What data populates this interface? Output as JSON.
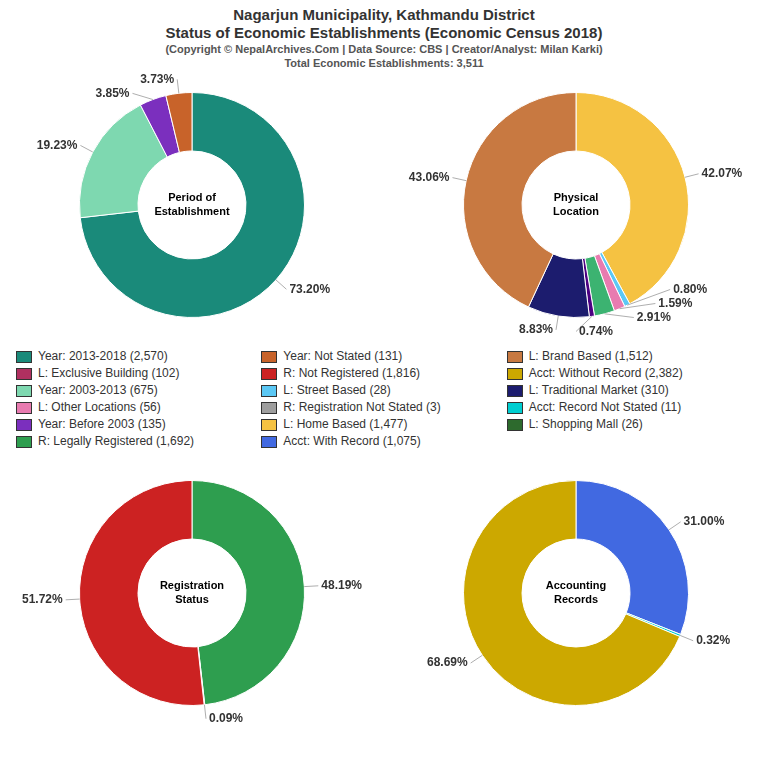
{
  "title": [
    "Nagarjun Municipality, Kathmandu District",
    "Status of Economic Establishments (Economic Census 2018)"
  ],
  "subtitle": [
    "(Copyright © NepalArchives.Com | Data Source: CBS | Creator/Analyst: Milan Karki)",
    "Total Economic Establishments: 3,511"
  ],
  "legend_entries": [
    {
      "name": "Year: 2013-2018 (2,570)",
      "color": "#1a8a7a"
    },
    {
      "name": "Year: Not Stated (131)",
      "color": "#C8632A"
    },
    {
      "name": "L: Brand Based (1,512)",
      "color": "#C87941"
    },
    {
      "name": "L: Exclusive Building (102)",
      "color": "#B03060"
    },
    {
      "name": "R: Not Registered (1,816)",
      "color": "#CC2222"
    },
    {
      "name": "Acct: Without Record (2,382)",
      "color": "#CCA800"
    },
    {
      "name": "Year: 2003-2013 (675)",
      "color": "#7ED8B0"
    },
    {
      "name": "L: Street Based (28)",
      "color": "#5BC8F5"
    },
    {
      "name": "L: Traditional Market (310)",
      "color": "#1C1C6E"
    },
    {
      "name": "L: Other Locations (56)",
      "color": "#E87BB0"
    },
    {
      "name": "R: Registration Not Stated (3)",
      "color": "#9E9E9E"
    },
    {
      "name": "Acct: Record Not Stated (11)",
      "color": "#00CED1"
    },
    {
      "name": "Year: Before 2003 (135)",
      "color": "#7B2FBE"
    },
    {
      "name": "L: Home Based (1,477)",
      "color": "#F5C242"
    },
    {
      "name": "L: Shopping Mall (26)",
      "color": "#2D6A2D"
    },
    {
      "name": "R: Legally Registered (1,692)",
      "color": "#2E9E4F"
    },
    {
      "name": "Acct: With Record (1,075)",
      "color": "#4169E1"
    }
  ],
  "chart_data": [
    {
      "type": "doughnut",
      "title": "Period of\nEstablishment",
      "values": [
        73.2,
        19.23,
        3.85,
        3.73
      ],
      "value_labels": [
        "73.20%",
        "19.23%",
        "3.85%",
        "3.73%"
      ],
      "colors": [
        "#1a8a7a",
        "#7ED8B0",
        "#7B2FBE",
        "#C8632A"
      ],
      "data_labels": true
    },
    {
      "type": "doughnut",
      "title": "Physical\nLocation",
      "values": [
        42.07,
        0.8,
        1.59,
        2.91,
        0.74,
        8.83,
        43.06
      ],
      "value_labels": [
        "42.07%",
        "0.80%",
        "1.59%",
        "2.91%",
        "0.74%",
        "8.83%",
        "43.06%"
      ],
      "colors": [
        "#F5C242",
        "#5BC8F5",
        "#E87BB0",
        "#3CB371",
        "#4B0082",
        "#1C1C6E",
        "#C87941"
      ],
      "data_labels": true
    },
    {
      "type": "doughnut",
      "title": "Registration\nStatus",
      "values": [
        48.19,
        0.09,
        51.72
      ],
      "value_labels": [
        "48.19%",
        "0.09%",
        "51.72%"
      ],
      "colors": [
        "#2E9E4F",
        "#9E9E9E",
        "#CC2222"
      ],
      "data_labels": true
    },
    {
      "type": "doughnut",
      "title": "Accounting\nRecords",
      "values": [
        31.0,
        0.32,
        68.69
      ],
      "value_labels": [
        "31.00%",
        "0.32%",
        "68.69%"
      ],
      "colors": [
        "#4169E1",
        "#00CED1",
        "#CCA800"
      ],
      "data_labels": true
    }
  ]
}
